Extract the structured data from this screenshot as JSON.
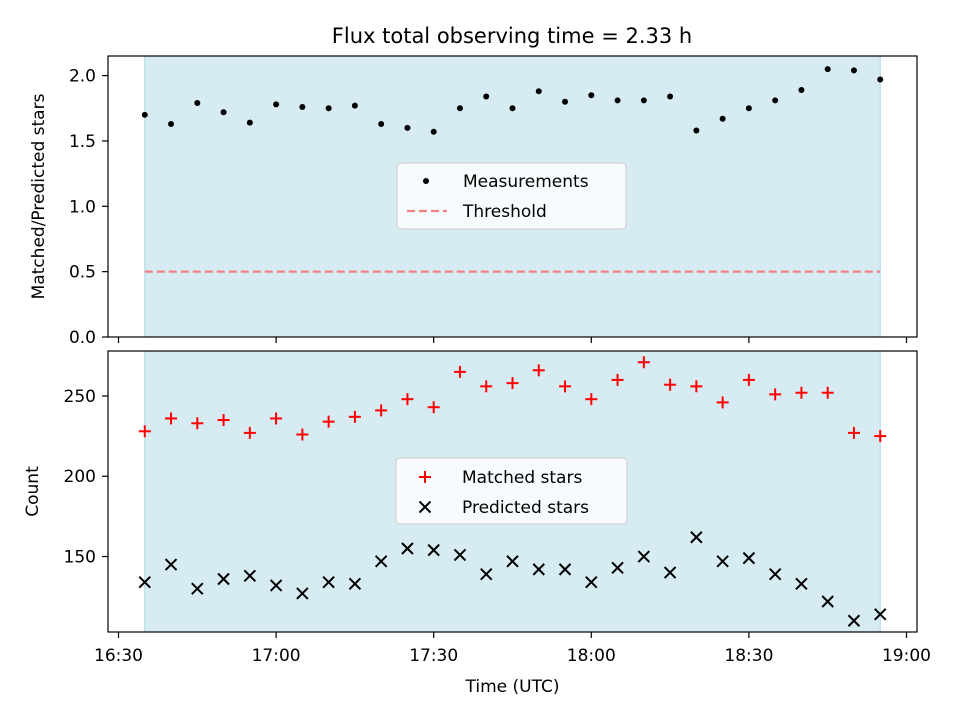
{
  "title": "Flux total observing time = 2.33 h",
  "colors": {
    "shade": "#add8e6",
    "measurement": "#000000",
    "threshold": "#f08080",
    "matched": "#ff0000",
    "predicted": "#000000"
  },
  "chart_data": [
    {
      "type": "scatter",
      "ylabel": "Matched/Predicted stars",
      "xlabel": "",
      "xlim": [
        "16:28",
        "19:02"
      ],
      "ylim": [
        0,
        2.15
      ],
      "y_ticks": [
        0.0,
        0.5,
        1.0,
        1.5,
        2.0
      ],
      "y_tick_labels": [
        "0.0",
        "0.5",
        "1.0",
        "1.5",
        "2.0"
      ],
      "shaded_span": [
        "16:35",
        "18:55"
      ],
      "legend_position": "center",
      "x": [
        "16:35",
        "16:40",
        "16:45",
        "16:50",
        "16:55",
        "17:00",
        "17:05",
        "17:10",
        "17:15",
        "17:20",
        "17:25",
        "17:30",
        "17:35",
        "17:40",
        "17:45",
        "17:50",
        "17:55",
        "18:00",
        "18:05",
        "18:10",
        "18:15",
        "18:20",
        "18:25",
        "18:30",
        "18:35",
        "18:40",
        "18:45",
        "18:50",
        "18:55"
      ],
      "series": [
        {
          "name": "Measurements",
          "marker": "dot",
          "values": [
            1.7,
            1.63,
            1.79,
            1.72,
            1.64,
            1.78,
            1.76,
            1.75,
            1.77,
            1.63,
            1.6,
            1.57,
            1.75,
            1.84,
            1.75,
            1.88,
            1.8,
            1.85,
            1.81,
            1.81,
            1.84,
            1.58,
            1.67,
            1.75,
            1.81,
            1.89,
            2.05,
            2.04,
            1.97
          ]
        },
        {
          "name": "Threshold",
          "style": "dashed",
          "value": 0.5,
          "x_range": [
            "16:35",
            "18:55"
          ]
        }
      ]
    },
    {
      "type": "scatter",
      "ylabel": "Count",
      "xlabel": "Time (UTC)",
      "xlim": [
        "16:28",
        "19:02"
      ],
      "ylim": [
        103,
        278
      ],
      "y_ticks": [
        150,
        200,
        250
      ],
      "y_tick_labels": [
        "150",
        "200",
        "250"
      ],
      "x_ticks": [
        "16:30",
        "17:00",
        "17:30",
        "18:00",
        "18:30",
        "19:00"
      ],
      "x_tick_labels": [
        "16:30",
        "17:00",
        "17:30",
        "18:00",
        "18:30",
        "19:00"
      ],
      "shaded_span": [
        "16:35",
        "18:55"
      ],
      "legend_position": "center",
      "x": [
        "16:35",
        "16:40",
        "16:45",
        "16:50",
        "16:55",
        "17:00",
        "17:05",
        "17:10",
        "17:15",
        "17:20",
        "17:25",
        "17:30",
        "17:35",
        "17:40",
        "17:45",
        "17:50",
        "17:55",
        "18:00",
        "18:05",
        "18:10",
        "18:15",
        "18:20",
        "18:25",
        "18:30",
        "18:35",
        "18:40",
        "18:45",
        "18:50",
        "18:55"
      ],
      "series": [
        {
          "name": "Matched stars",
          "marker": "plus",
          "values": [
            228,
            236,
            233,
            235,
            227,
            236,
            226,
            234,
            237,
            241,
            248,
            243,
            265,
            256,
            258,
            266,
            256,
            248,
            260,
            271,
            257,
            256,
            246,
            260,
            251,
            252,
            252,
            227,
            225
          ]
        },
        {
          "name": "Predicted stars",
          "marker": "x",
          "values": [
            134,
            145,
            130,
            136,
            138,
            132,
            127,
            134,
            133,
            147,
            155,
            154,
            151,
            139,
            147,
            142,
            142,
            134,
            143,
            150,
            140,
            162,
            147,
            149,
            139,
            133,
            122,
            110,
            114
          ]
        }
      ]
    }
  ]
}
